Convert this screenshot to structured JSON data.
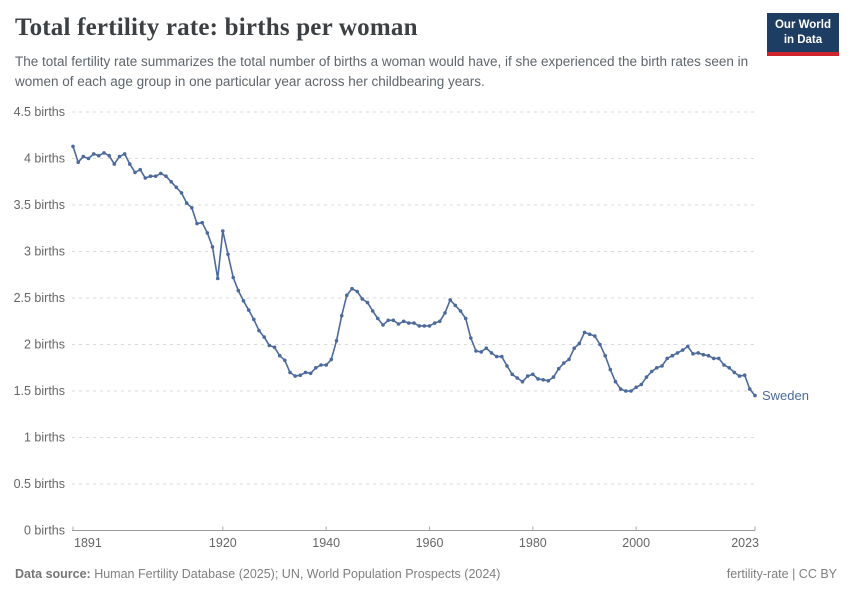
{
  "header": {
    "title": "Total fertility rate: births per woman",
    "subtitle": "The total fertility rate summarizes the total number of births a woman would have, if she experienced the birth rates seen in women of each age group in one particular year across her childbearing years.",
    "logo": {
      "line1": "Our World",
      "line2": "in Data",
      "bg_color": "#1d3d63",
      "accent_color": "#d0232e"
    }
  },
  "footer": {
    "source_label": "Data source:",
    "source_text": " Human Fertility Database (2025); UN, World Population Prospects (2024)",
    "right_text": "fertility-rate | CC BY"
  },
  "chart_data": {
    "type": "line",
    "title": "Total fertility rate: births per woman",
    "series_label": "Sweden",
    "line_color": "#4c6a9c",
    "grid_color": "#dbdbdb",
    "axis_color": "#9a9a9a",
    "tick_text_color": "#666666",
    "xlim": [
      1891,
      2023
    ],
    "ylim": [
      0,
      4.5
    ],
    "x_ticks": [
      1891,
      1920,
      1940,
      1960,
      1980,
      2000,
      2023
    ],
    "y_ticks": [
      0,
      0.5,
      1,
      1.5,
      2,
      2.5,
      3,
      3.5,
      4,
      4.5
    ],
    "y_tick_suffix": " births",
    "grid": "dashed-horizontal",
    "legend_position": "end-of-line",
    "years": [
      1891,
      1892,
      1893,
      1894,
      1895,
      1896,
      1897,
      1898,
      1899,
      1900,
      1901,
      1902,
      1903,
      1904,
      1905,
      1906,
      1907,
      1908,
      1909,
      1910,
      1911,
      1912,
      1913,
      1914,
      1915,
      1916,
      1917,
      1918,
      1919,
      1920,
      1921,
      1922,
      1923,
      1924,
      1925,
      1926,
      1927,
      1928,
      1929,
      1930,
      1931,
      1932,
      1933,
      1934,
      1935,
      1936,
      1937,
      1938,
      1939,
      1940,
      1941,
      1942,
      1943,
      1944,
      1945,
      1946,
      1947,
      1948,
      1949,
      1950,
      1951,
      1952,
      1953,
      1954,
      1955,
      1956,
      1957,
      1958,
      1959,
      1960,
      1961,
      1962,
      1963,
      1964,
      1965,
      1966,
      1967,
      1968,
      1969,
      1970,
      1971,
      1972,
      1973,
      1974,
      1975,
      1976,
      1977,
      1978,
      1979,
      1980,
      1981,
      1982,
      1983,
      1984,
      1985,
      1986,
      1987,
      1988,
      1989,
      1990,
      1991,
      1992,
      1993,
      1994,
      1995,
      1996,
      1997,
      1998,
      1999,
      2000,
      2001,
      2002,
      2003,
      2004,
      2005,
      2006,
      2007,
      2008,
      2009,
      2010,
      2011,
      2012,
      2013,
      2014,
      2015,
      2016,
      2017,
      2018,
      2019,
      2020,
      2021,
      2022,
      2023
    ],
    "series": [
      {
        "name": "Sweden",
        "color": "#4c6a9c",
        "values": [
          4.13,
          3.96,
          4.02,
          4.0,
          4.05,
          4.03,
          4.06,
          4.03,
          3.94,
          4.02,
          4.05,
          3.94,
          3.85,
          3.88,
          3.79,
          3.81,
          3.81,
          3.84,
          3.81,
          3.75,
          3.69,
          3.63,
          3.52,
          3.47,
          3.3,
          3.31,
          3.2,
          3.05,
          2.71,
          3.22,
          2.97,
          2.72,
          2.58,
          2.47,
          2.37,
          2.27,
          2.15,
          2.08,
          1.99,
          1.97,
          1.88,
          1.83,
          1.7,
          1.66,
          1.67,
          1.7,
          1.69,
          1.75,
          1.78,
          1.78,
          1.84,
          2.04,
          2.31,
          2.53,
          2.6,
          2.57,
          2.49,
          2.45,
          2.36,
          2.28,
          2.21,
          2.26,
          2.26,
          2.22,
          2.25,
          2.23,
          2.23,
          2.2,
          2.2,
          2.2,
          2.23,
          2.25,
          2.34,
          2.48,
          2.42,
          2.36,
          2.28,
          2.07,
          1.93,
          1.92,
          1.96,
          1.91,
          1.87,
          1.87,
          1.77,
          1.68,
          1.64,
          1.6,
          1.66,
          1.68,
          1.63,
          1.62,
          1.61,
          1.65,
          1.74,
          1.8,
          1.84,
          1.96,
          2.01,
          2.13,
          2.11,
          2.09,
          2.0,
          1.88,
          1.73,
          1.6,
          1.52,
          1.5,
          1.5,
          1.54,
          1.57,
          1.65,
          1.71,
          1.75,
          1.77,
          1.85,
          1.88,
          1.91,
          1.94,
          1.98,
          1.9,
          1.91,
          1.89,
          1.88,
          1.85,
          1.85,
          1.78,
          1.75,
          1.7,
          1.66,
          1.67,
          1.52,
          1.45
        ]
      }
    ]
  }
}
